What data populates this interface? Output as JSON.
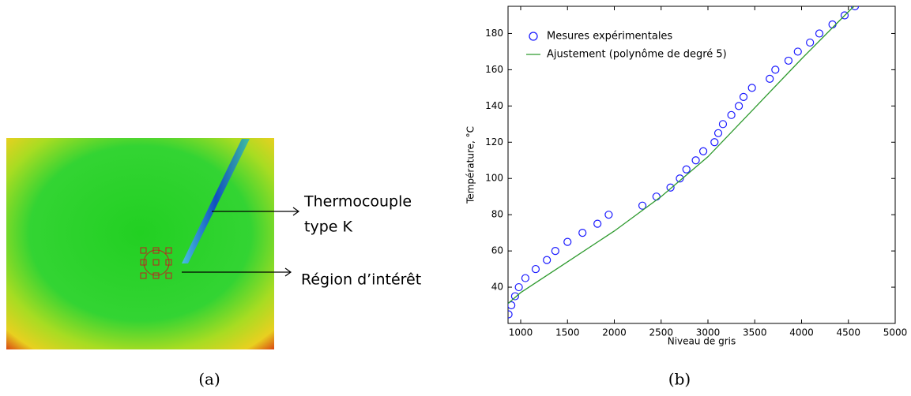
{
  "panel_a": {
    "labels": [
      "Thermocouple",
      "type K",
      "Région d’intérêt"
    ],
    "caption": "(a)"
  },
  "chart_data": {
    "type": "scatter",
    "caption": "(b)",
    "x_label": "Niveau de gris",
    "y_label": "Température, °C",
    "xlim": [
      865,
      5000
    ],
    "ylim": [
      20,
      195
    ],
    "xticks": [
      1000,
      1500,
      2000,
      2500,
      3000,
      3500,
      4000,
      4500,
      5000
    ],
    "yticks": [
      40,
      60,
      80,
      100,
      120,
      140,
      160,
      180
    ],
    "legend": "upper left",
    "series": [
      {
        "name": "Mesures expérimentales",
        "color": "#1a1aff",
        "marker": "circle",
        "x": [
          870,
          900,
          940,
          980,
          1050,
          1160,
          1280,
          1370,
          1500,
          1660,
          1820,
          1940,
          2300,
          2450,
          2600,
          2700,
          2770,
          2870,
          2950,
          3070,
          3110,
          3160,
          3250,
          3330,
          3380,
          3470,
          3660,
          3720,
          3860,
          3960,
          4090,
          4190,
          4330,
          4460,
          4570
        ],
        "values": [
          25,
          30,
          35,
          40,
          45,
          50,
          55,
          60,
          65,
          70,
          75,
          80,
          85,
          90,
          95,
          100,
          105,
          110,
          115,
          120,
          125,
          130,
          135,
          140,
          145,
          150,
          155,
          160,
          165,
          170,
          175,
          180,
          185,
          190,
          195
        ]
      },
      {
        "name": "Ajustement (polynôme de degré 5)",
        "color": "#2e9a2e",
        "marker": "line",
        "x": [
          865,
          1000,
          1500,
          2000,
          2500,
          3000,
          3500,
          4000,
          4500,
          4560
        ],
        "values": [
          31,
          37,
          54,
          71,
          90,
          112,
          139,
          166,
          192,
          195
        ]
      }
    ]
  }
}
